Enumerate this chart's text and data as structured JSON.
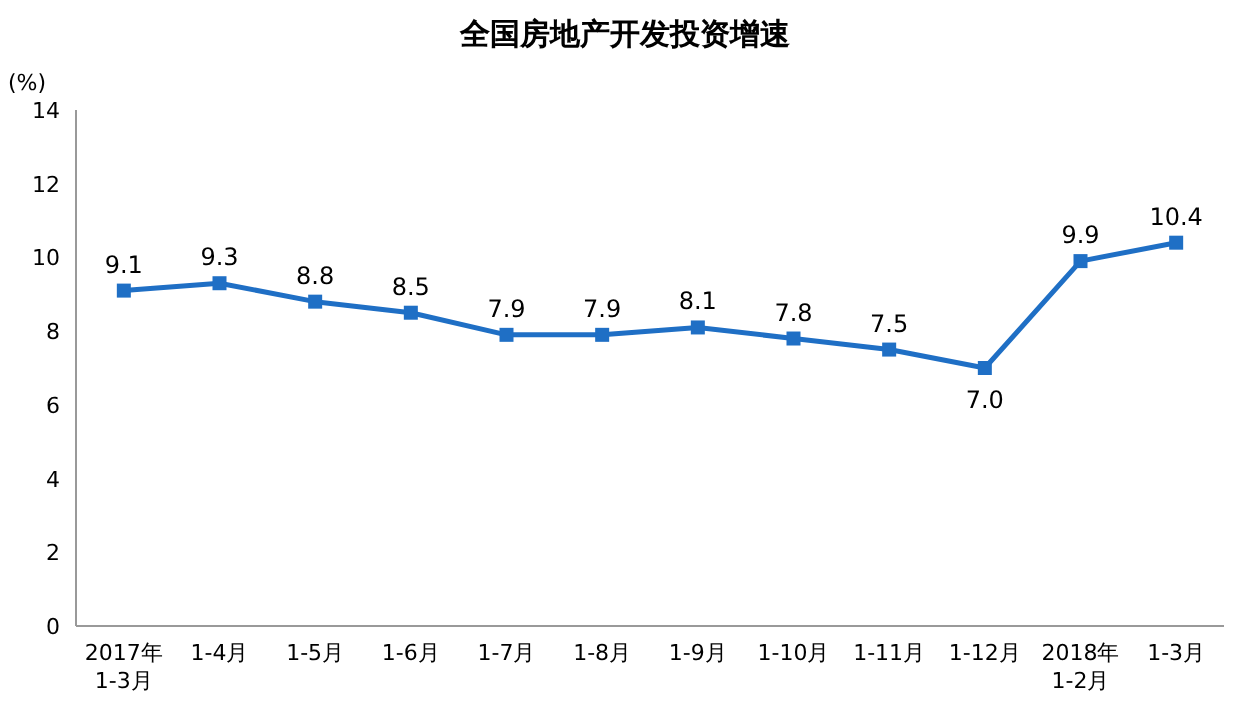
{
  "chart_data": {
    "type": "line",
    "title": "全国房地产开发投资增速",
    "ylabel": "(%)",
    "categories": [
      "2017年\n1-3月",
      "1-4月",
      "1-5月",
      "1-6月",
      "1-7月",
      "1-8月",
      "1-9月",
      "1-10月",
      "1-11月",
      "1-12月",
      "2018年\n1-2月",
      "1-3月"
    ],
    "series": [
      {
        "color": "#1f6fc5",
        "values": [
          9.1,
          9.3,
          8.8,
          8.5,
          7.9,
          7.9,
          8.1,
          7.8,
          7.5,
          7.0,
          9.9,
          10.4
        ],
        "value_labels": [
          "9.1",
          "9.3",
          "8.8",
          "8.5",
          "7.9",
          "7.9",
          "8.1",
          "7.8",
          "7.5",
          "7.0",
          "9.9",
          "10.4"
        ]
      }
    ],
    "ylim": [
      0,
      14
    ],
    "yticks": [
      0,
      2,
      4,
      6,
      8,
      10,
      12,
      14
    ],
    "grid": false,
    "marker": "square",
    "line_style": "solid"
  }
}
